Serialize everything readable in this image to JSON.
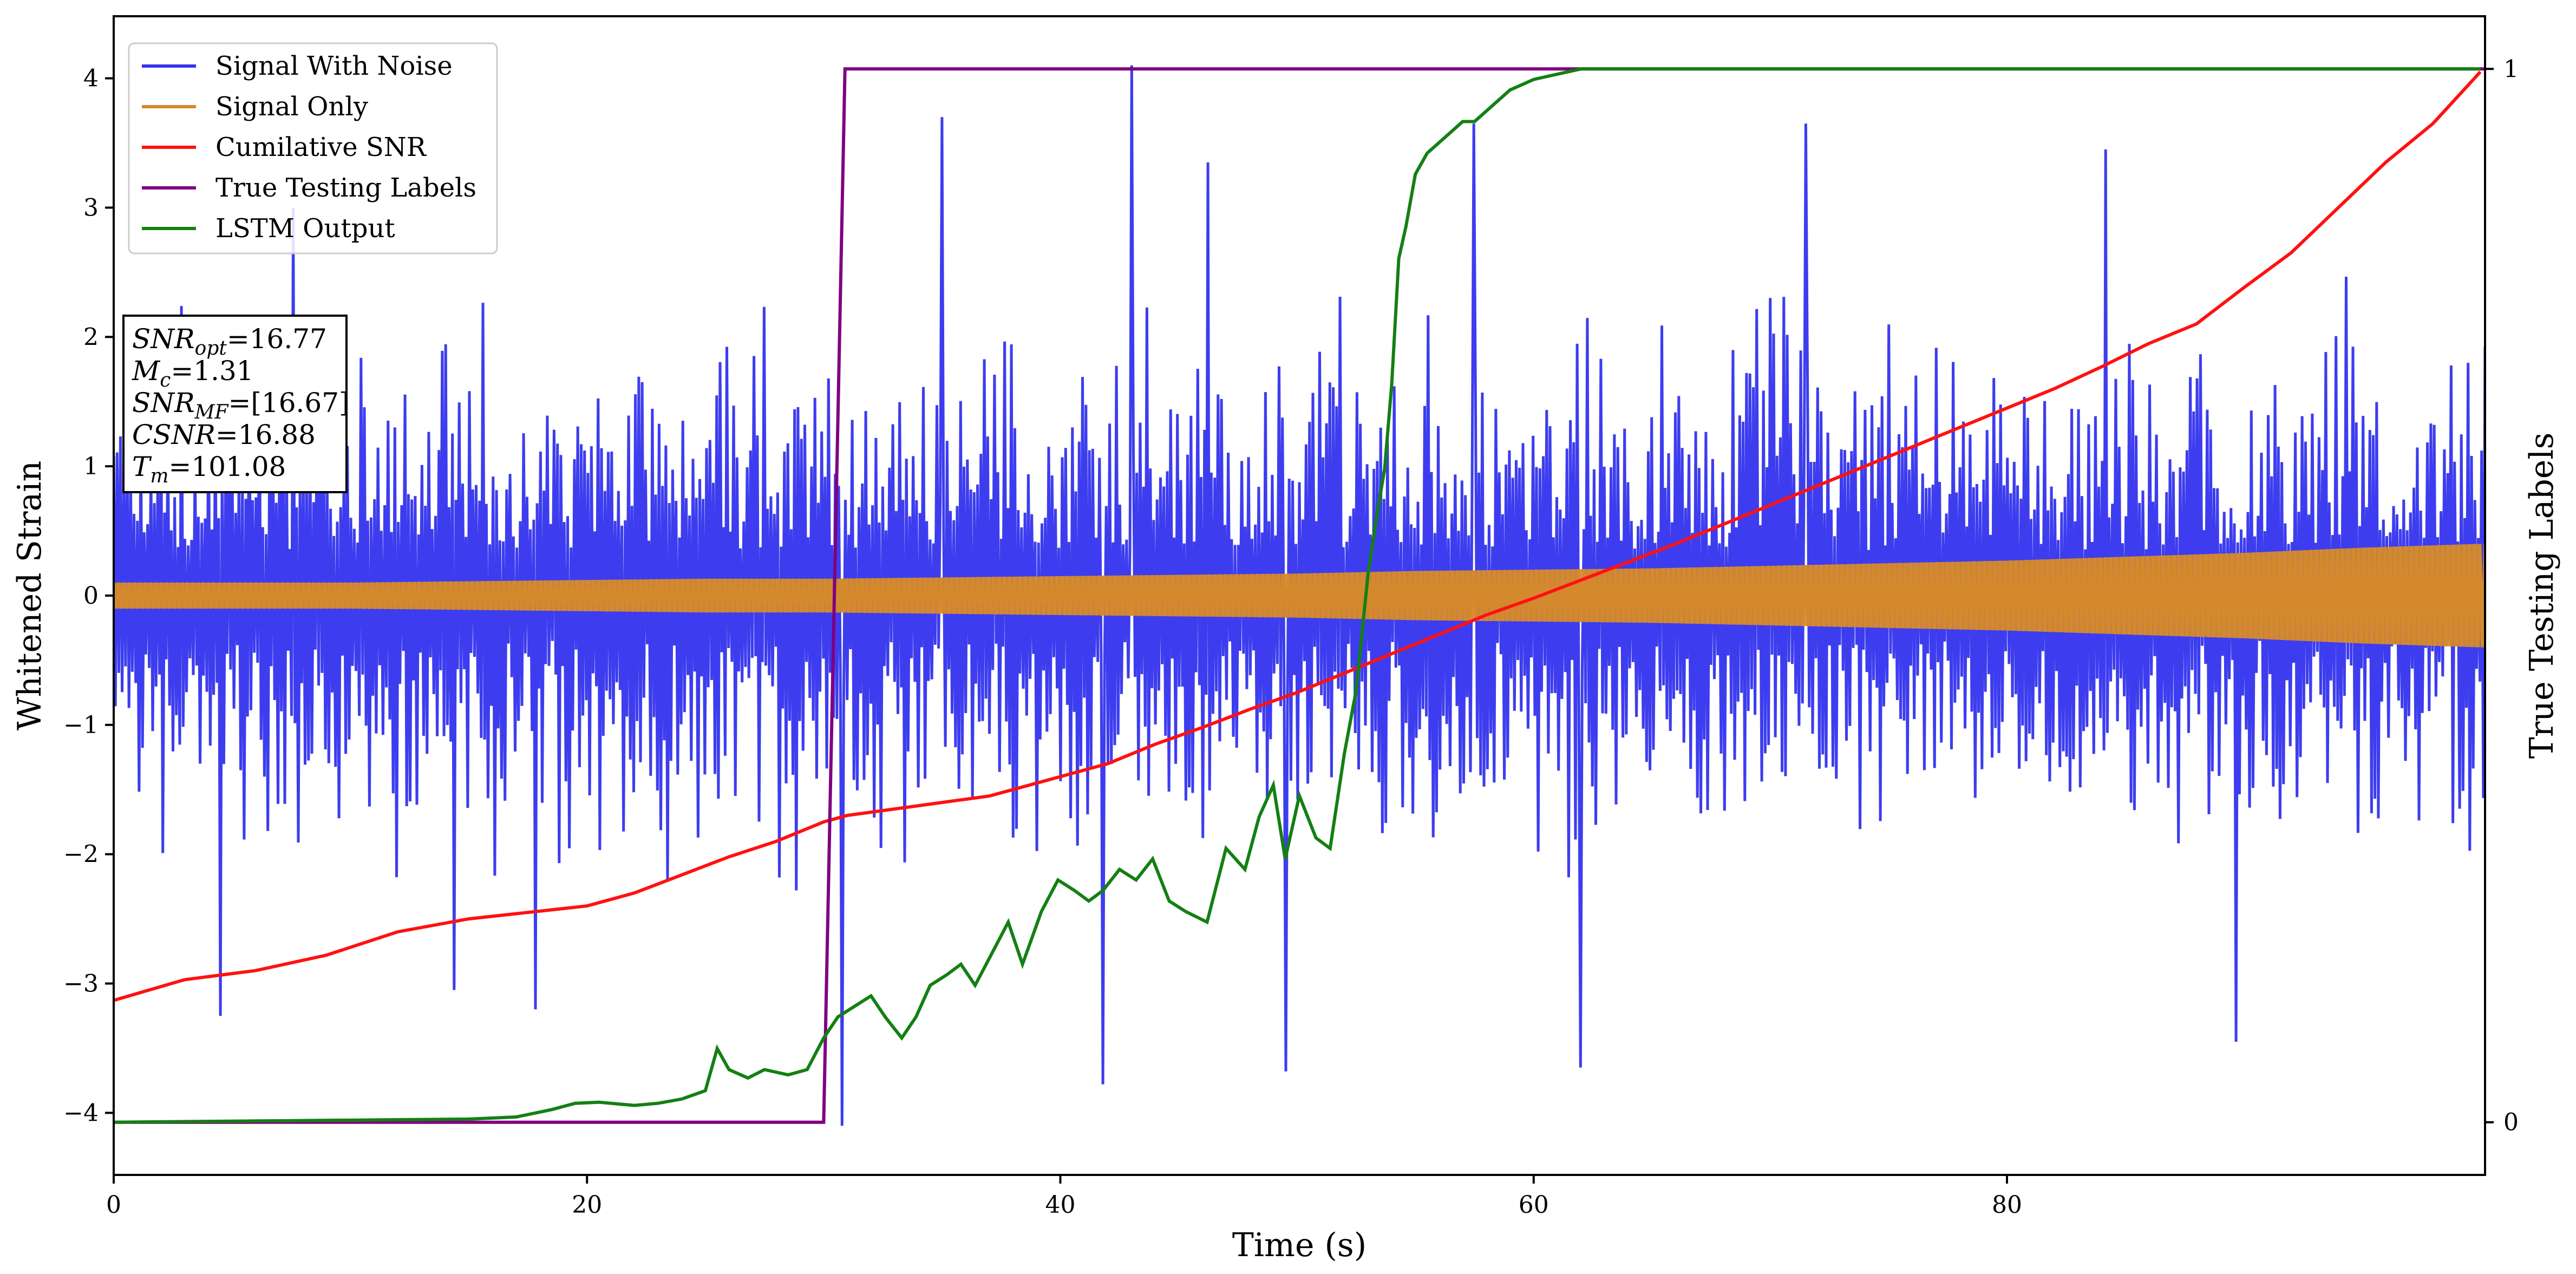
{
  "chart_data": {
    "type": "line",
    "xlabel": "Time (s)",
    "ylabel": "Whitened Strain",
    "y2label": "True Testing Labels",
    "xlim": [
      0,
      100.2
    ],
    "ylim": [
      -4.48,
      4.48
    ],
    "y2lim": [
      -0.05,
      1.05
    ],
    "xticks": [
      0,
      20,
      40,
      60,
      80
    ],
    "yticks": [
      -4,
      -3,
      -2,
      -1,
      0,
      1,
      2,
      3,
      4
    ],
    "y2ticks": [
      0,
      1
    ],
    "grid": false,
    "legend_position": "top-left",
    "colors": {
      "noise": "#3333ee",
      "signal": "#d4892e",
      "csnr": "#ff1111",
      "labels": "#800080",
      "lstm": "#138013"
    },
    "series": [
      {
        "name": "Signal With Noise",
        "axis": "left",
        "note_key": "noise",
        "samples": 1400,
        "envelope_x": [
          0,
          10,
          20,
          30,
          40,
          50,
          60,
          70,
          80,
          90,
          100
        ],
        "typical_amplitude": [
          1.1,
          1.1,
          1.15,
          1.15,
          1.15,
          1.2,
          1.2,
          1.2,
          1.2,
          1.25,
          1.25
        ],
        "peaks": [
          {
            "x": 4.5,
            "y": -3.25
          },
          {
            "x": 7.6,
            "y": 3.0
          },
          {
            "x": 14.4,
            "y": -3.05
          },
          {
            "x": 17.8,
            "y": -3.2
          },
          {
            "x": 30.8,
            "y": -4.1
          },
          {
            "x": 35.0,
            "y": 3.7
          },
          {
            "x": 41.8,
            "y": -3.78
          },
          {
            "x": 43.0,
            "y": 4.1
          },
          {
            "x": 46.2,
            "y": 3.35
          },
          {
            "x": 49.5,
            "y": -3.68
          },
          {
            "x": 57.5,
            "y": 3.65
          },
          {
            "x": 62.0,
            "y": -3.65
          },
          {
            "x": 71.5,
            "y": 3.65
          },
          {
            "x": 84.2,
            "y": 3.45
          },
          {
            "x": 89.7,
            "y": -3.45
          }
        ]
      },
      {
        "name": "Signal Only",
        "axis": "left",
        "x": [
          0,
          10,
          15,
          20,
          25,
          30,
          35,
          40,
          45,
          50,
          55,
          60,
          65,
          70,
          75,
          80,
          85,
          90,
          95,
          100
        ],
        "amplitude": [
          0.1,
          0.1,
          0.11,
          0.12,
          0.13,
          0.13,
          0.14,
          0.15,
          0.16,
          0.17,
          0.19,
          0.2,
          0.21,
          0.23,
          0.25,
          0.27,
          0.3,
          0.33,
          0.37,
          0.4
        ]
      },
      {
        "name": "Cumilative SNR",
        "axis": "left",
        "x": [
          0,
          3,
          6,
          9,
          12,
          15,
          18,
          20,
          22,
          24,
          26,
          28,
          30,
          31,
          33,
          35,
          37,
          40,
          42,
          44,
          46,
          48,
          50,
          52,
          54,
          56,
          58,
          60,
          62,
          64,
          66,
          68,
          70,
          72,
          74,
          76,
          78,
          80,
          82,
          84,
          86,
          88,
          90,
          92,
          94,
          96,
          98,
          100
        ],
        "y": [
          -3.13,
          -2.97,
          -2.9,
          -2.78,
          -2.6,
          -2.5,
          -2.44,
          -2.4,
          -2.3,
          -2.16,
          -2.02,
          -1.9,
          -1.75,
          -1.7,
          -1.65,
          -1.6,
          -1.55,
          -1.4,
          -1.3,
          -1.15,
          -1.02,
          -0.88,
          -0.75,
          -0.6,
          -0.45,
          -0.3,
          -0.15,
          -0.02,
          0.12,
          0.26,
          0.4,
          0.55,
          0.7,
          0.85,
          1.0,
          1.15,
          1.3,
          1.45,
          1.6,
          1.77,
          1.95,
          2.1,
          2.38,
          2.65,
          3.0,
          3.35,
          3.65,
          4.05
        ]
      },
      {
        "name": "True Testing Labels",
        "axis": "right",
        "x": [
          0,
          30.0,
          30.9,
          100.2
        ],
        "y": [
          0,
          0,
          1,
          1
        ]
      },
      {
        "name": "LSTM Output",
        "axis": "right",
        "x": [
          0,
          15,
          17,
          18.5,
          19.5,
          20.5,
          22,
          23,
          24,
          25,
          25.5,
          26,
          26.8,
          27.5,
          28.5,
          29.3,
          30,
          30.6,
          31.3,
          32,
          32.6,
          33.3,
          33.9,
          34.5,
          35.2,
          35.8,
          36.4,
          37.1,
          37.8,
          38.4,
          39.2,
          39.9,
          40.6,
          41.2,
          41.8,
          42.5,
          43.2,
          43.9,
          44.6,
          45.3,
          46.2,
          47,
          47.8,
          48.4,
          49.0,
          49.5,
          50.1,
          50.8,
          51.4,
          52.0,
          52.5,
          53.0,
          53.4,
          53.7,
          54.0,
          54.3,
          54.6,
          55.0,
          55.5,
          56.0,
          56.5,
          57.0,
          57.5,
          58.0,
          58.5,
          59.0,
          59.5,
          60.0,
          61.0,
          62.0,
          63.0,
          64.0,
          65.0,
          66.0,
          68.0,
          100.0
        ],
        "y": [
          0.0,
          0.003,
          0.005,
          0.012,
          0.018,
          0.019,
          0.016,
          0.018,
          0.022,
          0.03,
          0.07,
          0.05,
          0.042,
          0.05,
          0.045,
          0.05,
          0.08,
          0.1,
          0.11,
          0.12,
          0.1,
          0.08,
          0.1,
          0.13,
          0.14,
          0.15,
          0.13,
          0.16,
          0.19,
          0.15,
          0.2,
          0.23,
          0.22,
          0.21,
          0.22,
          0.24,
          0.23,
          0.25,
          0.21,
          0.2,
          0.19,
          0.26,
          0.24,
          0.29,
          0.32,
          0.25,
          0.31,
          0.27,
          0.26,
          0.35,
          0.41,
          0.52,
          0.58,
          0.62,
          0.7,
          0.82,
          0.85,
          0.9,
          0.92,
          0.93,
          0.94,
          0.95,
          0.95,
          0.96,
          0.97,
          0.98,
          0.985,
          0.99,
          0.995,
          1.0,
          1.0,
          1.0,
          1.0,
          1.0,
          1.0,
          1.0
        ]
      }
    ],
    "info_box": [
      {
        "base": "SNR",
        "sub": "opt",
        "value": "=16.77"
      },
      {
        "base": "M",
        "sub": "c",
        "value": "=1.31"
      },
      {
        "base": "SNR",
        "sub": "MF",
        "value": "=[16.67]"
      },
      {
        "base": "CSNR",
        "sub": "",
        "value": "=16.88"
      },
      {
        "base": "T",
        "sub": "m",
        "value": "=101.08"
      }
    ]
  }
}
